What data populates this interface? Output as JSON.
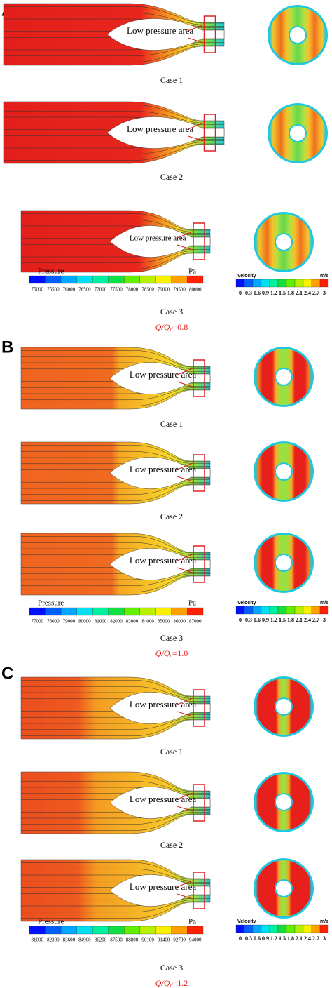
{
  "panels": [
    {
      "letter": "A",
      "cases": [
        {
          "label": "Case 1",
          "annotation": "Low pressure area"
        },
        {
          "label": "Case 2",
          "annotation": "Low pressure area"
        },
        {
          "label": "Case 3",
          "annotation": "Low pressure area"
        }
      ],
      "pressure_colorbar": {
        "title": "Pressure",
        "unit": "Pa",
        "ticks": [
          75000,
          75500,
          76000,
          76500,
          77000,
          77500,
          78000,
          78500,
          79000,
          79500,
          80000
        ]
      },
      "velocity_colorbar": {
        "title": "Velocity",
        "unit": "m/s",
        "ticks": [
          0,
          0.3,
          0.6,
          0.9,
          1.2,
          1.5,
          1.8,
          2.1,
          2.4,
          2.7,
          3
        ]
      },
      "flow_ratio": {
        "prefix": "Q/Q",
        "subscript": "d",
        "value": "=0.8"
      }
    },
    {
      "letter": "B",
      "cases": [
        {
          "label": "Case 1",
          "annotation": "Low pressure area"
        },
        {
          "label": "Case 2",
          "annotation": "Low pressure area"
        },
        {
          "label": "Case 3",
          "annotation": "Low pressure area"
        }
      ],
      "pressure_colorbar": {
        "title": "Pressure",
        "unit": "Pa",
        "ticks": [
          77000,
          78000,
          79000,
          80000,
          81000,
          82000,
          83000,
          84000,
          85000,
          86000,
          87000
        ]
      },
      "velocity_colorbar": {
        "title": "Velocity",
        "unit": "m/s",
        "ticks": [
          0,
          0.3,
          0.6,
          0.9,
          1.2,
          1.5,
          1.8,
          2.1,
          2.4,
          2.7,
          3
        ]
      },
      "flow_ratio": {
        "prefix": "Q/Q",
        "subscript": "d",
        "value": "=1.0"
      }
    },
    {
      "letter": "C",
      "cases": [
        {
          "label": "Case 1",
          "annotation": "Low pressure area"
        },
        {
          "label": "Case 2",
          "annotation": "Low pressure area"
        },
        {
          "label": "Case 3",
          "annotation": "Low pressure area"
        }
      ],
      "pressure_colorbar": {
        "title": "Pressure",
        "unit": "Pa",
        "ticks": [
          81000,
          82300,
          83600,
          84900,
          86200,
          87500,
          88800,
          90100,
          91400,
          92700,
          94000
        ]
      },
      "velocity_colorbar": {
        "title": "Velocity",
        "unit": "m/s",
        "ticks": [
          0,
          0.3,
          0.6,
          0.9,
          1.2,
          1.5,
          1.8,
          2.1,
          2.4,
          2.7,
          3
        ]
      },
      "flow_ratio": {
        "prefix": "Q/Q",
        "subscript": "d",
        "value": "=1.2"
      }
    }
  ]
}
